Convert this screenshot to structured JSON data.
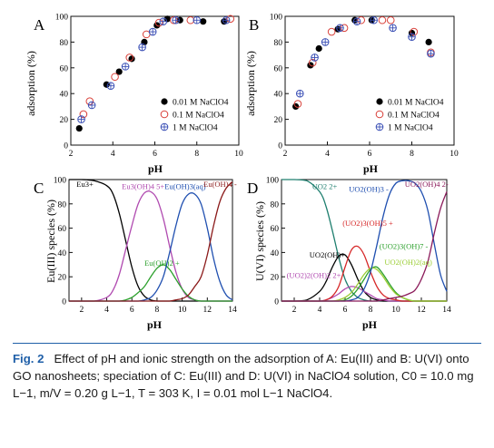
{
  "caption": {
    "label": "Fig. 2",
    "text": "Effect of pH and ionic strength on the adsorption of A: Eu(III) and B: U(VI) onto GO nanosheets; speciation of C: Eu(III) and D: U(VI) in NaClO4 solution, C0 = 10.0 mg L−1, m/V = 0.20 g L−1, T = 303 K, I = 0.01 mol L−1 NaClO4."
  },
  "chart_data": [
    {
      "panel": "A",
      "type": "scatter",
      "xlabel": "pH",
      "ylabel": "adsorption (%)",
      "xlim": [
        2,
        10
      ],
      "ylim": [
        0,
        100
      ],
      "xticks": [
        2,
        4,
        6,
        8,
        10
      ],
      "yticks": [
        0,
        20,
        40,
        60,
        80,
        100
      ],
      "legend": "bottom-right",
      "series": [
        {
          "name": "0.01 M NaClO4",
          "marker": "filled-circle",
          "x": [
            2.4,
            3.7,
            4.3,
            4.9,
            5.5,
            6.1,
            6.6,
            7.2,
            8.3,
            9.3
          ],
          "y": [
            13,
            47,
            57,
            67,
            80,
            93,
            98,
            97,
            96,
            96
          ]
        },
        {
          "name": "0.1 M NaClO4",
          "marker": "open-circle",
          "x": [
            2.6,
            2.9,
            4.1,
            4.8,
            5.6,
            6.2,
            6.9,
            7.7,
            9.6
          ],
          "y": [
            24,
            34,
            53,
            68,
            86,
            95,
            97,
            97,
            98
          ]
        },
        {
          "name": "1 M NaClO4",
          "marker": "crossed-circle",
          "x": [
            2.5,
            3.0,
            3.9,
            4.6,
            5.4,
            5.9,
            6.4,
            7.0,
            8.0,
            9.4
          ],
          "y": [
            20,
            31,
            46,
            61,
            76,
            88,
            96,
            97,
            97,
            97
          ]
        }
      ]
    },
    {
      "panel": "B",
      "type": "scatter",
      "xlabel": "pH",
      "ylabel": "adsorption (%)",
      "xlim": [
        2,
        10
      ],
      "ylim": [
        0,
        100
      ],
      "xticks": [
        2,
        4,
        6,
        8,
        10
      ],
      "yticks": [
        0,
        20,
        40,
        60,
        80,
        100
      ],
      "legend": "bottom-right",
      "series": [
        {
          "name": "0.01 M NaClO4",
          "marker": "filled-circle",
          "x": [
            2.5,
            3.2,
            3.6,
            4.5,
            5.3,
            6.1,
            8.0,
            8.8
          ],
          "y": [
            30,
            62,
            75,
            90,
            97,
            97,
            87,
            80
          ]
        },
        {
          "name": "0.1 M NaClO4",
          "marker": "open-circle",
          "x": [
            2.6,
            3.3,
            4.2,
            4.8,
            5.6,
            6.6,
            7.0,
            8.1,
            8.9
          ],
          "y": [
            32,
            64,
            88,
            91,
            97,
            97,
            97,
            88,
            72
          ]
        },
        {
          "name": "1 M NaClO4",
          "marker": "crossed-circle",
          "x": [
            2.7,
            3.4,
            3.9,
            4.6,
            5.4,
            6.2,
            7.1,
            8.0,
            8.9
          ],
          "y": [
            40,
            68,
            80,
            91,
            96,
            97,
            91,
            84,
            71
          ]
        }
      ]
    },
    {
      "panel": "C",
      "type": "line",
      "xlabel": "pH",
      "ylabel": "Eu(III) species (%)",
      "xlim": [
        1,
        14
      ],
      "ylim": [
        0,
        100
      ],
      "xticks": [
        2,
        4,
        6,
        8,
        10,
        12,
        14
      ],
      "yticks": [
        0,
        20,
        40,
        60,
        80,
        100
      ],
      "x": [
        1,
        2,
        3,
        4,
        4.5,
        5,
        5.5,
        6,
        6.5,
        7,
        7.5,
        8,
        8.5,
        9,
        9.5,
        10,
        10.5,
        11,
        11.5,
        12,
        12.5,
        13,
        13.5,
        14
      ],
      "series": [
        {
          "name": "Eu3+",
          "color": "#000000",
          "y": [
            100,
            100,
            99,
            95,
            88,
            72,
            50,
            28,
            12,
            4,
            1,
            0,
            0,
            0,
            0,
            0,
            0,
            0,
            0,
            0,
            0,
            0,
            0,
            0
          ]
        },
        {
          "name": "Eu3(OH)4 5+",
          "color": "#b04ab0",
          "y": [
            0,
            0,
            0,
            3,
            9,
            22,
            42,
            62,
            80,
            89,
            90,
            84,
            68,
            45,
            24,
            10,
            3,
            1,
            0,
            0,
            0,
            0,
            0,
            0
          ]
        },
        {
          "name": "Eu(OH)2 +",
          "color": "#2ca02c",
          "y": [
            0,
            0,
            0,
            0,
            0,
            0,
            1,
            3,
            7,
            12,
            20,
            27,
            30,
            26,
            18,
            10,
            4,
            1,
            0,
            0,
            0,
            0,
            0,
            0
          ]
        },
        {
          "name": "Eu(OH)3(aq)",
          "color": "#1f4fb0",
          "y": [
            0,
            0,
            0,
            0,
            0,
            0,
            0,
            0,
            0,
            1,
            3,
            9,
            20,
            40,
            62,
            80,
            88,
            88,
            80,
            60,
            35,
            16,
            5,
            1
          ]
        },
        {
          "name": "Eu(OH)4 -",
          "color": "#8b1a1a",
          "y": [
            0,
            0,
            0,
            0,
            0,
            0,
            0,
            0,
            0,
            0,
            0,
            0,
            0,
            0,
            1,
            2,
            5,
            12,
            20,
            38,
            62,
            82,
            93,
            98
          ]
        }
      ]
    },
    {
      "panel": "D",
      "type": "line",
      "xlabel": "pH",
      "ylabel": "U(VI) species (%)",
      "xlim": [
        1,
        14
      ],
      "ylim": [
        0,
        100
      ],
      "xticks": [
        2,
        4,
        6,
        8,
        10,
        12,
        14
      ],
      "yticks": [
        0,
        20,
        40,
        60,
        80,
        100
      ],
      "x": [
        1,
        2,
        3,
        4,
        4.5,
        5,
        5.5,
        6,
        6.5,
        7,
        7.5,
        8,
        8.5,
        9,
        9.5,
        10,
        10.5,
        11,
        11.5,
        12,
        12.5,
        13,
        13.5,
        14
      ],
      "series": [
        {
          "name": "UO2 2+",
          "color": "#1f7f6f",
          "y": [
            100,
            100,
            99,
            90,
            78,
            58,
            36,
            18,
            8,
            3,
            1,
            0,
            0,
            0,
            0,
            0,
            0,
            0,
            0,
            0,
            0,
            0,
            0,
            0
          ]
        },
        {
          "name": "UO2(OH)+",
          "color": "#000000",
          "y": [
            0,
            0,
            1,
            8,
            16,
            28,
            37,
            38,
            30,
            18,
            8,
            3,
            1,
            0,
            0,
            0,
            0,
            0,
            0,
            0,
            0,
            0,
            0,
            0
          ]
        },
        {
          "name": "(UO2)2(OH)2 2+",
          "color": "#b04ab0",
          "y": [
            0,
            0,
            0,
            0,
            1,
            3,
            6,
            10,
            12,
            11,
            8,
            5,
            2,
            1,
            0,
            0,
            0,
            0,
            0,
            0,
            0,
            0,
            0,
            0
          ]
        },
        {
          "name": "(UO2)3(OH)5 +",
          "color": "#d62728",
          "y": [
            0,
            0,
            0,
            0,
            1,
            4,
            12,
            28,
            42,
            45,
            38,
            24,
            12,
            5,
            2,
            1,
            0,
            0,
            0,
            0,
            0,
            0,
            0,
            0
          ]
        },
        {
          "name": "(UO2)3(OH)7 -",
          "color": "#2ca02c",
          "y": [
            0,
            0,
            0,
            0,
            0,
            0,
            0,
            1,
            4,
            10,
            18,
            26,
            28,
            22,
            14,
            7,
            3,
            1,
            0,
            0,
            0,
            0,
            0,
            0
          ]
        },
        {
          "name": "UO2(OH)2(aq)",
          "color": "#9acd32",
          "y": [
            0,
            0,
            0,
            0,
            0,
            0,
            1,
            3,
            7,
            14,
            22,
            27,
            26,
            20,
            12,
            6,
            3,
            1,
            0,
            0,
            0,
            0,
            0,
            0
          ]
        },
        {
          "name": "UO2(OH)3 -",
          "color": "#1f4fb0",
          "y": [
            0,
            0,
            0,
            0,
            0,
            0,
            0,
            0,
            1,
            3,
            10,
            24,
            46,
            70,
            88,
            97,
            99,
            99,
            97,
            90,
            75,
            48,
            22,
            8
          ]
        },
        {
          "name": "UO2(OH)4 2-",
          "color": "#8b1a5a",
          "y": [
            0,
            0,
            0,
            0,
            0,
            0,
            0,
            0,
            0,
            0,
            0,
            0,
            0,
            1,
            2,
            3,
            4,
            6,
            9,
            18,
            32,
            55,
            76,
            90
          ]
        }
      ]
    }
  ]
}
